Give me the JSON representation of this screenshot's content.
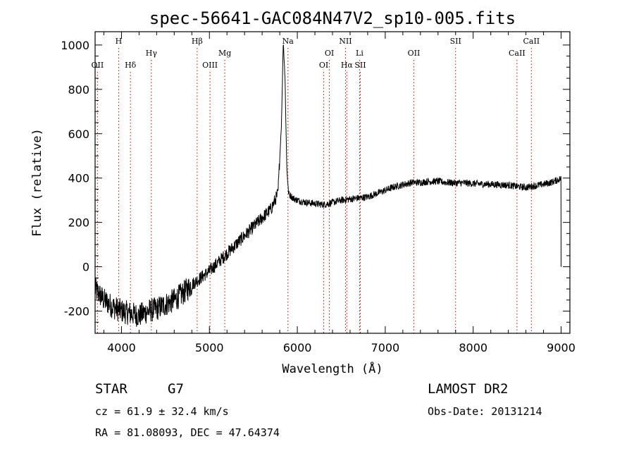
{
  "chart_data": {
    "type": "line",
    "title": "spec-56641-GAC084N47V2_sp10-005.fits",
    "xlabel": "Wavelength (Å)",
    "ylabel": "Flux (relative)",
    "xlim": [
      3700,
      9100
    ],
    "ylim": [
      -300,
      1060
    ],
    "xticks": [
      "4000",
      "5000",
      "6000",
      "7000",
      "8000",
      "9000"
    ],
    "yticks": [
      "-200",
      "0",
      "200",
      "400",
      "600",
      "800",
      "1000"
    ],
    "x_tick_values": [
      4000,
      5000,
      6000,
      7000,
      8000,
      9000
    ],
    "y_tick_values": [
      -200,
      0,
      200,
      400,
      600,
      800,
      1000
    ],
    "grid": false,
    "series": [
      {
        "x": [
          3700,
          3800,
          3900,
          4000,
          4100,
          4200,
          4300,
          4400,
          4500,
          4600,
          4700,
          4800,
          4900,
          5000,
          5100,
          5200,
          5300,
          5400,
          5500,
          5600,
          5700,
          5780,
          5820,
          5840,
          5860,
          5880,
          5900,
          5950,
          6000,
          6100,
          6200,
          6300,
          6400,
          6500,
          6600,
          6700,
          6800,
          6900,
          7000,
          7100,
          7200,
          7300,
          7400,
          7500,
          7600,
          7700,
          7800,
          7900,
          8000,
          8100,
          8200,
          8300,
          8400,
          8500,
          8600,
          8700,
          8800,
          8900,
          9000
        ],
        "y": [
          -100,
          -150,
          -180,
          -200,
          -210,
          -220,
          -200,
          -190,
          -170,
          -150,
          -120,
          -80,
          -50,
          -20,
          20,
          60,
          100,
          140,
          180,
          220,
          260,
          330,
          650,
          1020,
          850,
          450,
          330,
          310,
          300,
          290,
          285,
          280,
          290,
          300,
          305,
          310,
          315,
          330,
          345,
          360,
          370,
          380,
          380,
          385,
          385,
          380,
          378,
          378,
          375,
          373,
          372,
          370,
          368,
          362,
          358,
          365,
          372,
          382,
          398
        ]
      }
    ],
    "line_labels": [
      {
        "label": "OII",
        "wavelength": 3727,
        "row": 3
      },
      {
        "label": "H",
        "wavelength": 3968,
        "row": 1
      },
      {
        "label": "Hδ",
        "wavelength": 4102,
        "row": 3
      },
      {
        "label": "Hγ",
        "wavelength": 4340,
        "row": 2
      },
      {
        "label": "Hβ",
        "wavelength": 4861,
        "row": 1
      },
      {
        "label": "OIII",
        "wavelength": 5007,
        "row": 3
      },
      {
        "label": "Mg",
        "wavelength": 5175,
        "row": 2
      },
      {
        "label": "Na",
        "wavelength": 5893,
        "row": 1
      },
      {
        "label": "OI",
        "wavelength": 6300,
        "row": 3
      },
      {
        "label": "OI",
        "wavelength": 6364,
        "row": 2
      },
      {
        "label": "NII",
        "wavelength": 6548,
        "row": 1
      },
      {
        "label": "Hα",
        "wavelength": 6563,
        "row": 3
      },
      {
        "label": "Li",
        "wavelength": 6708,
        "row": 2
      },
      {
        "label": "SII",
        "wavelength": 6716,
        "row": 3
      },
      {
        "label": "OII",
        "wavelength": 7325,
        "row": 2
      },
      {
        "label": "SII",
        "wavelength": 7800,
        "row": 1
      },
      {
        "label": "CaII",
        "wavelength": 8498,
        "row": 2
      },
      {
        "label": "CaII",
        "wavelength": 8662,
        "row": 1
      }
    ]
  },
  "info": {
    "object_class": "STAR",
    "subclass": "G7",
    "redshift": "cz = 61.9 ± 32.4 km/s",
    "coords": "RA =  81.08093, DEC =  47.64374",
    "survey": "LAMOST DR2",
    "obs_date": "Obs-Date: 20131214"
  },
  "colors": {
    "spectrum": "#000000",
    "line_markers": "#cc0000",
    "axes": "#000000"
  }
}
